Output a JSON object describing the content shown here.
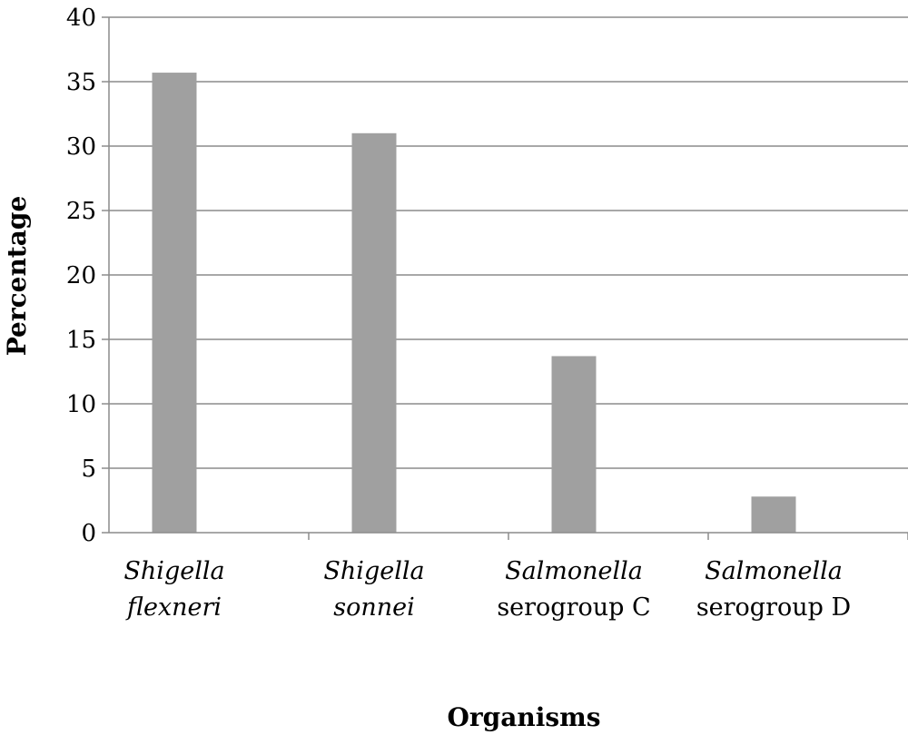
{
  "chart_data": {
    "type": "bar",
    "categories": [
      {
        "lines": [
          "Shigella",
          "flexneri"
        ],
        "italic": [
          true,
          true
        ]
      },
      {
        "lines": [
          "Shigella",
          "sonnei"
        ],
        "italic": [
          true,
          true
        ]
      },
      {
        "lines": [
          "Salmonella",
          "serogroup C"
        ],
        "italic": [
          true,
          false
        ]
      },
      {
        "lines": [
          "Salmonella",
          "serogroup D"
        ],
        "italic": [
          true,
          false
        ]
      }
    ],
    "values": [
      35.7,
      31.0,
      13.7,
      2.8
    ],
    "xlabel": "Organisms",
    "ylabel": "Percentage",
    "ylim": [
      0,
      40
    ],
    "yticks": [
      0,
      5,
      10,
      15,
      20,
      25,
      30,
      35,
      40
    ],
    "grid": true,
    "legend": "none",
    "colors": {
      "bar": "#a0a0a0",
      "grid": "#8c8c8c",
      "axis": "#8c8c8c",
      "text": "#000000"
    }
  }
}
